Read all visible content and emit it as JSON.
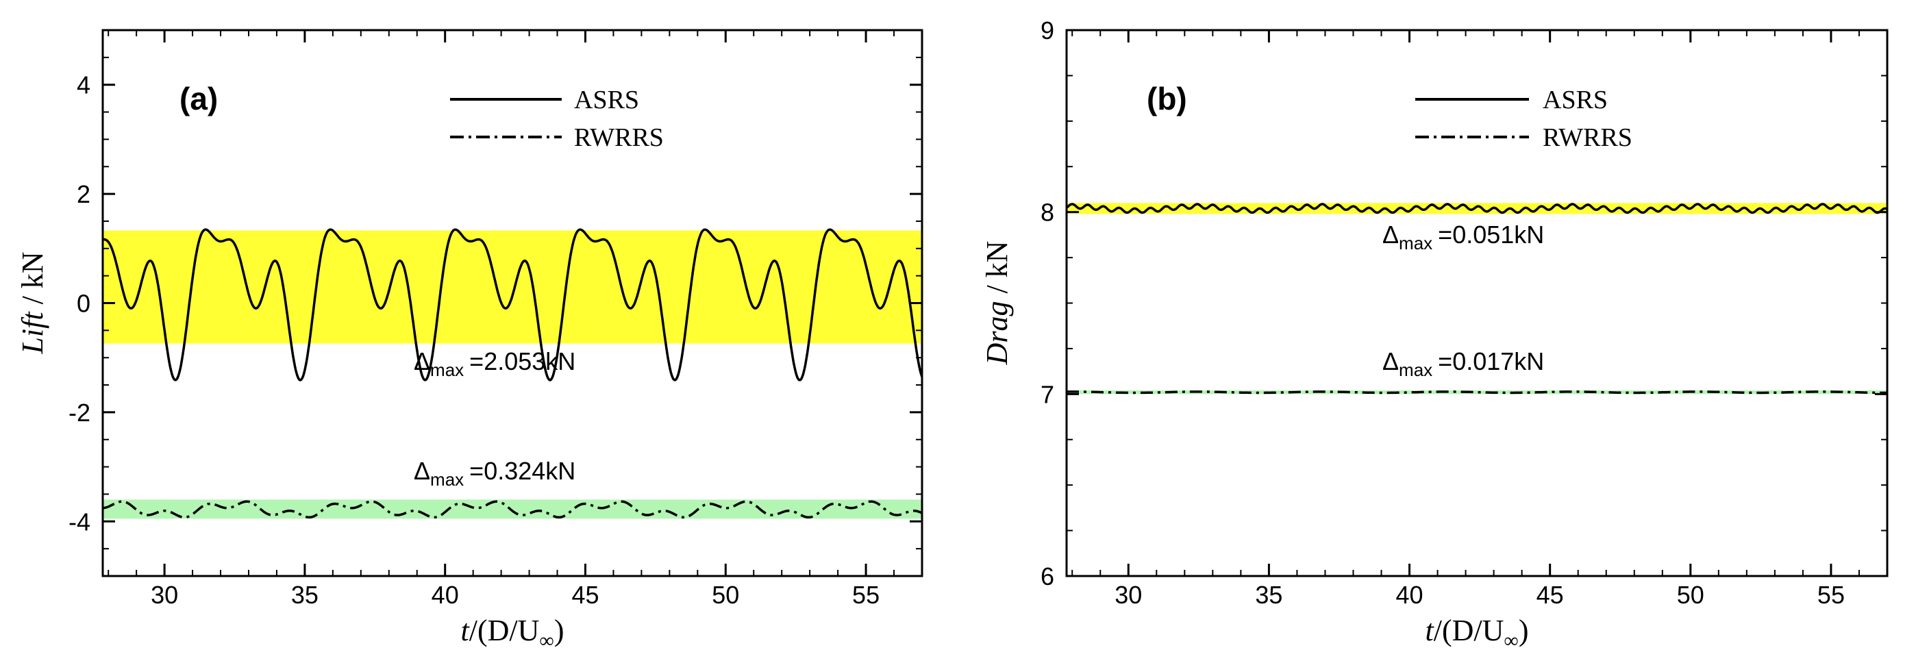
{
  "chart_data": [
    {
      "type": "line",
      "panel_label": "(a)",
      "xlabel_italic": "t",
      "xlabel_rest": "/(D/U",
      "xlabel_sub": "∞",
      "xlabel_close": ")",
      "ylabel_italic": "Lift",
      "ylabel_rest": " / kN",
      "xlim": [
        27.8,
        57.0
      ],
      "ylim": [
        -5,
        5
      ],
      "xticks": [
        30,
        35,
        40,
        45,
        50,
        55
      ],
      "xtick_labels": [
        "30",
        "35",
        "40",
        "45",
        "50",
        "55"
      ],
      "yticks": [
        -4,
        -2,
        0,
        2,
        4
      ],
      "ytick_labels": [
        "-4",
        "-2",
        "0",
        "2",
        "4"
      ],
      "bands": [
        {
          "name": "ASRS range",
          "ymin": -0.74,
          "ymax": 1.33,
          "color": "#ffff33"
        },
        {
          "name": "RWRRS range",
          "ymin": -3.95,
          "ymax": -3.6,
          "color": "#b3f5b3"
        }
      ],
      "series": [
        {
          "name": "ASRS",
          "style": "solid",
          "model": {
            "period": 4.45,
            "phase": 28.0,
            "components": [
              [
                0.36,
                0.0
              ],
              [
                0.79,
                -0.25
              ],
              [
                -0.41,
                -0.51
              ],
              [
                0.38,
                0.27
              ]
            ]
          }
        },
        {
          "name": "RWRRS",
          "style": "dashdot",
          "model": {
            "period": 4.45,
            "phase": 28.0,
            "components": [
              [
                -3.78,
                0.0
              ],
              [
                0.1,
                0.0
              ],
              [
                0.0,
                0.0
              ],
              [
                -0.05,
                0.05
              ]
            ]
          }
        }
      ],
      "legend": [
        "ASRS",
        "RWRRS"
      ],
      "annotations": [
        {
          "delta": "Δ",
          "sub": "max",
          "value": "=2.053kN"
        },
        {
          "delta": "Δ",
          "sub": "max",
          "value": "=0.324kN"
        }
      ]
    },
    {
      "type": "line",
      "panel_label": "(b)",
      "xlabel_italic": "t",
      "xlabel_rest": "/(D/U",
      "xlabel_sub": "∞",
      "xlabel_close": ")",
      "ylabel_italic": "Drag",
      "ylabel_rest": " / kN",
      "xlim": [
        27.8,
        57.0
      ],
      "ylim": [
        6,
        9
      ],
      "xticks": [
        30,
        35,
        40,
        45,
        50,
        55
      ],
      "xtick_labels": [
        "30",
        "35",
        "40",
        "45",
        "50",
        "55"
      ],
      "yticks": [
        6,
        7,
        8,
        9
      ],
      "ytick_labels": [
        "6",
        "7",
        "8",
        "9"
      ],
      "bands": [
        {
          "name": "ASRS range",
          "ymin": 7.99,
          "ymax": 8.05,
          "color": "#ffff33"
        },
        {
          "name": "RWRRS range",
          "ymin": 7.0,
          "ymax": 7.02,
          "color": "#b3f5b3"
        }
      ],
      "series": [
        {
          "name": "ASRS",
          "style": "solid",
          "model": {
            "period": 4.45,
            "phase": 28.0,
            "components": [
              [
                8.02,
                0.0
              ],
              [
                0.012,
                0.0
              ],
              [
                0.0,
                0.0
              ],
              [
                0.0,
                0.0
              ],
              [
                0.0,
                0.0
              ],
              [
                0.0,
                0.0
              ],
              [
                0.0,
                0.0
              ],
              [
                0.0,
                0.0
              ],
              [
                0.012,
                0.0
              ]
            ]
          }
        },
        {
          "name": "RWRRS",
          "style": "dashdot",
          "model": {
            "period": 4.45,
            "phase": 28.0,
            "components": [
              [
                7.01,
                0.0
              ],
              [
                0.003,
                0.0
              ]
            ]
          }
        }
      ],
      "legend": [
        "ASRS",
        "RWRRS"
      ],
      "annotations": [
        {
          "delta": "Δ",
          "sub": "max",
          "value": "=0.051kN"
        },
        {
          "delta": "Δ",
          "sub": "max",
          "value": "=0.017kN"
        }
      ]
    }
  ]
}
